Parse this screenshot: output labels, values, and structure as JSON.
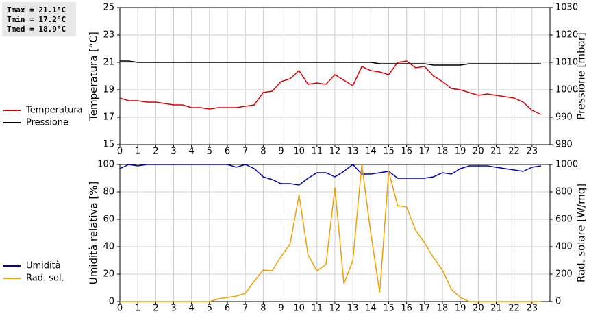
{
  "summary": [
    "Tmax = 21.1°C",
    "Tmin = 17.2°C",
    "Tmed = 18.9°C"
  ],
  "chart_data": [
    {
      "type": "line",
      "ylabel": "Temperatura [°C]",
      "y2label": "Pressione [mbar]",
      "x": [
        0,
        0.5,
        1,
        1.5,
        2,
        2.5,
        3,
        3.5,
        4,
        4.5,
        5,
        5.5,
        6,
        6.5,
        7,
        7.5,
        8,
        8.5,
        9,
        9.5,
        10,
        10.5,
        11,
        11.5,
        12,
        12.5,
        13,
        13.5,
        14,
        14.5,
        15,
        15.5,
        16,
        16.5,
        17,
        17.5,
        18,
        18.5,
        19,
        19.5,
        20,
        20.5,
        21,
        21.5,
        22,
        22.5,
        23,
        23.5
      ],
      "xlim": [
        0,
        24
      ],
      "xticks": [
        0,
        1,
        2,
        3,
        4,
        5,
        6,
        7,
        8,
        9,
        10,
        11,
        12,
        13,
        14,
        15,
        16,
        17,
        18,
        19,
        20,
        21,
        22,
        23
      ],
      "ylim": [
        15,
        25
      ],
      "yticks": [
        15,
        17,
        19,
        21,
        23,
        25
      ],
      "y2lim": [
        980,
        1030
      ],
      "y2ticks": [
        980,
        990,
        1000,
        1010,
        1020,
        1030
      ],
      "grid": true,
      "series": [
        {
          "name": "Temperatura",
          "color": "#dd0000",
          "axis": "y",
          "values": [
            18.4,
            18.2,
            18.2,
            18.1,
            18.1,
            18.0,
            17.9,
            17.9,
            17.7,
            17.7,
            17.6,
            17.7,
            17.7,
            17.7,
            17.8,
            17.9,
            18.8,
            18.9,
            19.6,
            19.8,
            20.4,
            19.4,
            19.5,
            19.4,
            20.1,
            19.7,
            19.3,
            20.7,
            20.4,
            20.3,
            20.1,
            21.0,
            21.1,
            20.6,
            20.7,
            20.0,
            19.6,
            19.1,
            19.0,
            18.8,
            18.6,
            18.7,
            18.6,
            18.5,
            18.4,
            18.1,
            17.5,
            17.2
          ]
        },
        {
          "name": "Pressione",
          "color": "#000000",
          "axis": "y2",
          "values": [
            1010.5,
            1010.5,
            1010,
            1010,
            1010,
            1010,
            1010,
            1010,
            1010,
            1010,
            1010,
            1010,
            1010,
            1010,
            1010,
            1010,
            1010,
            1010,
            1010,
            1010,
            1010,
            1010,
            1010,
            1010,
            1010,
            1010,
            1010,
            1010,
            1010,
            1009.5,
            1009.5,
            1009.5,
            1009.5,
            1009.5,
            1009.5,
            1009,
            1009,
            1009,
            1009,
            1009.5,
            1009.5,
            1009.5,
            1009.5,
            1009.5,
            1009.5,
            1009.5,
            1009.5,
            1009.5
          ]
        }
      ]
    },
    {
      "type": "line",
      "ylabel": "Umidità relativa [%]",
      "y2label": "Rad. solare [W/mq]",
      "x": [
        0,
        0.5,
        1,
        1.5,
        2,
        2.5,
        3,
        3.5,
        4,
        4.5,
        5,
        5.5,
        6,
        6.5,
        7,
        7.5,
        8,
        8.5,
        9,
        9.5,
        10,
        10.5,
        11,
        11.5,
        12,
        12.5,
        13,
        13.5,
        14,
        14.5,
        15,
        15.5,
        16,
        16.5,
        17,
        17.5,
        18,
        18.5,
        19,
        19.5,
        20,
        20.5,
        21,
        21.5,
        22,
        22.5,
        23,
        23.5
      ],
      "xlim": [
        0,
        24
      ],
      "xticks": [
        0,
        1,
        2,
        3,
        4,
        5,
        6,
        7,
        8,
        9,
        10,
        11,
        12,
        13,
        14,
        15,
        16,
        17,
        18,
        19,
        20,
        21,
        22,
        23
      ],
      "ylim": [
        0,
        100
      ],
      "yticks": [
        0,
        20,
        40,
        60,
        80,
        100
      ],
      "y2lim": [
        0,
        1000
      ],
      "y2ticks": [
        0,
        200,
        400,
        600,
        800,
        1000
      ],
      "grid": true,
      "series": [
        {
          "name": "Umidità",
          "color": "#0000bb",
          "axis": "y",
          "values": [
            97,
            100,
            99,
            100,
            100,
            100,
            100,
            100,
            100,
            100,
            100,
            100,
            100,
            98,
            100,
            97,
            91,
            89,
            86,
            86,
            85,
            90,
            94,
            94,
            91,
            95,
            100,
            93,
            93,
            94,
            95,
            90,
            90,
            90,
            90,
            91,
            94,
            93,
            97,
            99,
            99,
            99,
            98,
            97,
            96,
            95,
            98,
            99
          ]
        },
        {
          "name": "Rad. sol.",
          "color": "#f0a000",
          "axis": "y2",
          "values": [
            0,
            0,
            0,
            0,
            0,
            0,
            0,
            0,
            0,
            0,
            0,
            20,
            30,
            40,
            60,
            150,
            230,
            225,
            330,
            420,
            780,
            340,
            225,
            270,
            830,
            130,
            300,
            1000,
            500,
            65,
            950,
            700,
            690,
            520,
            430,
            320,
            230,
            90,
            30,
            0,
            0,
            0,
            0,
            0,
            0,
            0,
            0,
            0
          ]
        }
      ]
    }
  ]
}
